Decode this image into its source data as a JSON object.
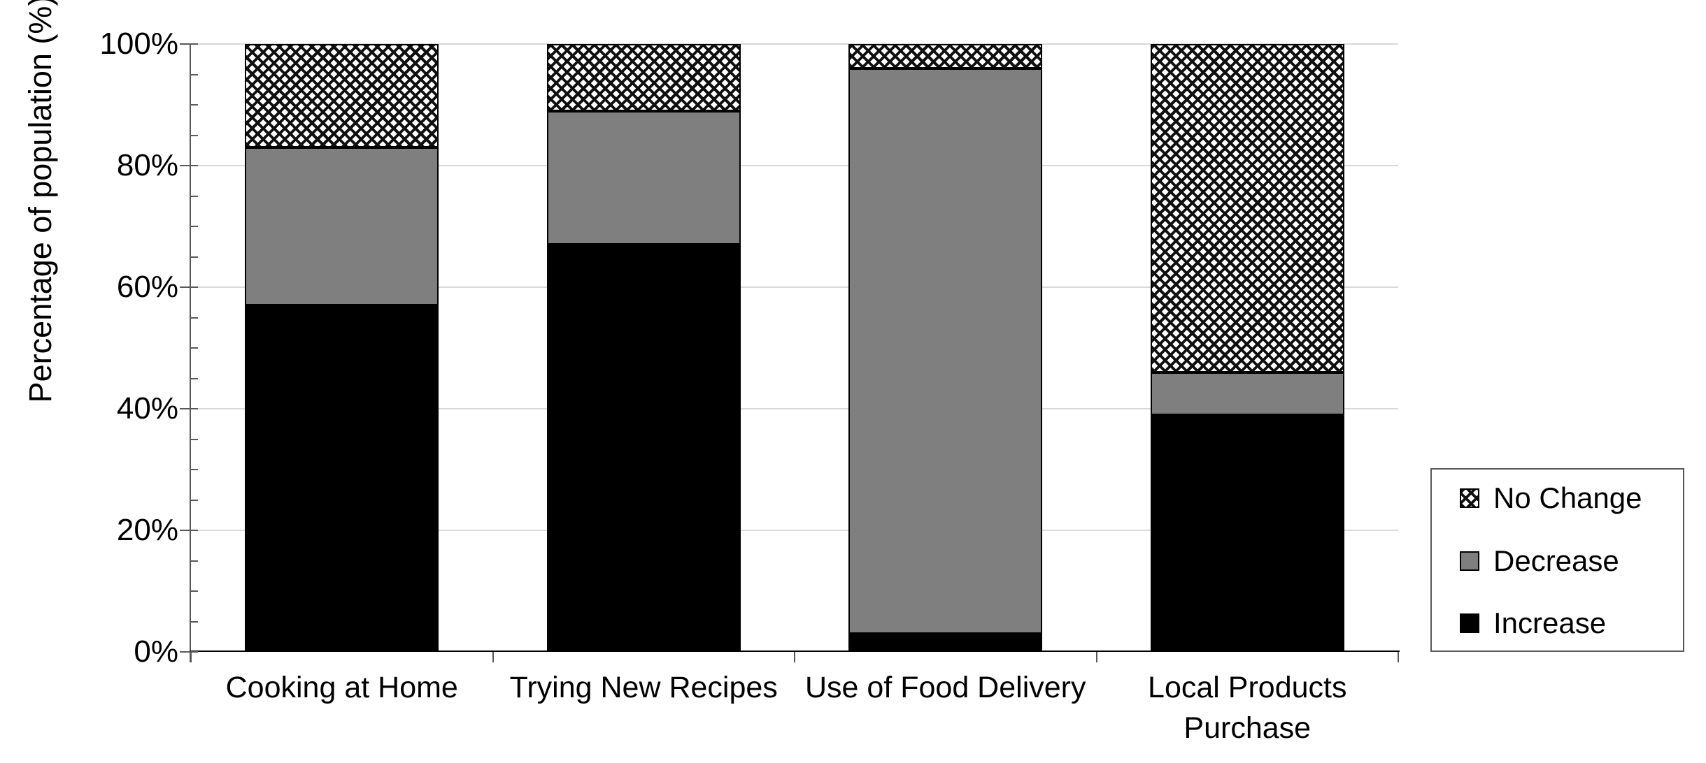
{
  "chart_data": {
    "type": "bar",
    "stacked": true,
    "title": "",
    "ylabel": "Percentage of population (%)",
    "xlabel": "",
    "ylim": [
      0,
      100
    ],
    "y_ticks": [
      "0%",
      "20%",
      "40%",
      "60%",
      "80%",
      "100%"
    ],
    "y_major_step": 20,
    "y_minor_step": 5,
    "grid": "horizontal-major",
    "legend_position": "right-middle",
    "categories": [
      "Cooking at Home",
      "Trying New Recipes",
      "Use of Food Delivery",
      "Local Products Purchase"
    ],
    "x_tick_labels": [
      "Cooking at Home",
      "Trying New Recipes",
      "Use of Food Delivery",
      "Local Products\nPurchase"
    ],
    "series": [
      {
        "name": "Increase",
        "fill": "black",
        "color": "#000000",
        "values": [
          57,
          67,
          3,
          39
        ]
      },
      {
        "name": "Decrease",
        "fill": "gray",
        "color": "#7f7f7f",
        "values": [
          26,
          22,
          93,
          7
        ]
      },
      {
        "name": "No Change",
        "fill": "checker",
        "color": "#000000",
        "values": [
          17,
          11,
          4,
          54
        ]
      }
    ]
  },
  "legend": {
    "items": [
      {
        "label": "No Change",
        "swatch": "checker"
      },
      {
        "label": "Decrease",
        "swatch": "gray"
      },
      {
        "label": "Increase",
        "swatch": "black"
      }
    ]
  },
  "style_colors": {
    "gridline": "#d9d9d9",
    "axis_line": "#595959",
    "x_axis_line": "#000000",
    "decrease_gray": "#7f7f7f",
    "text": "#000000"
  }
}
